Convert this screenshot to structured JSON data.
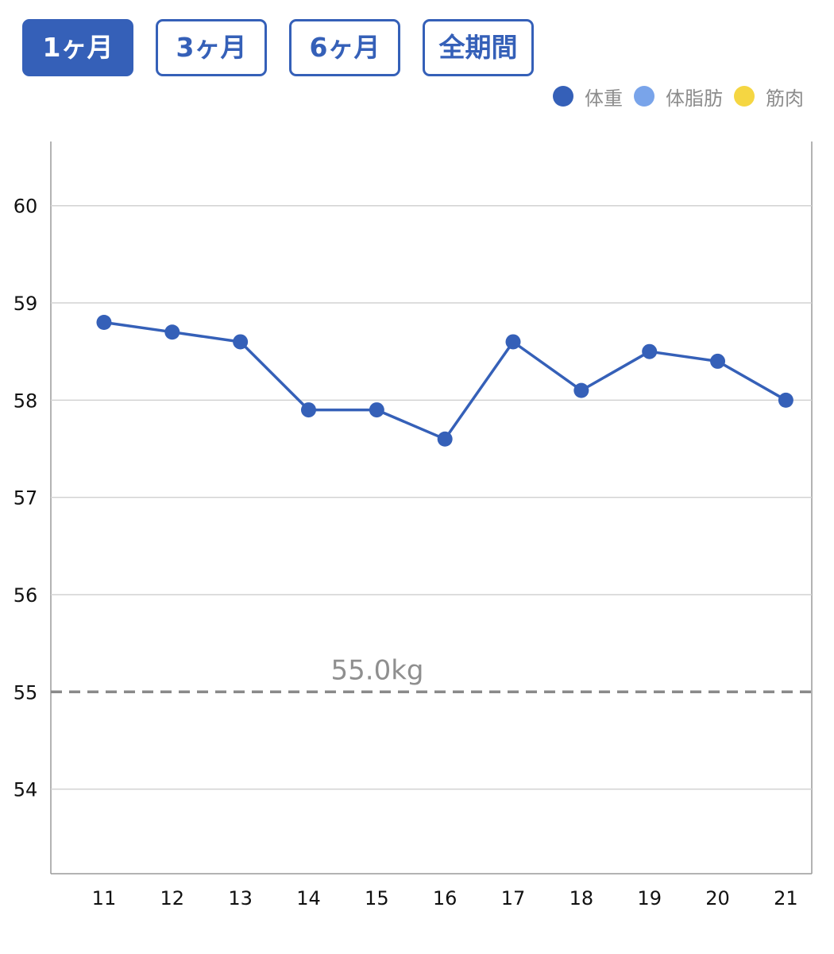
{
  "period_tabs": [
    {
      "label": "1ヶ月",
      "active": true
    },
    {
      "label": "3ヶ月",
      "active": false
    },
    {
      "label": "6ヶ月",
      "active": false
    },
    {
      "label": "全期間",
      "active": false
    }
  ],
  "legend": [
    {
      "label": "体重",
      "color": "#3560b8"
    },
    {
      "label": "体脂肪",
      "color": "#79a4ea"
    },
    {
      "label": "筋肉",
      "color": "#f5d642"
    }
  ],
  "chart_data": {
    "type": "line",
    "x": [
      11,
      12,
      13,
      14,
      15,
      16,
      17,
      18,
      19,
      20,
      21
    ],
    "series": [
      {
        "name": "体重",
        "color": "#3560b8",
        "values": [
          58.8,
          58.7,
          58.6,
          57.9,
          57.9,
          57.6,
          58.6,
          58.1,
          58.5,
          58.4,
          58.0
        ]
      }
    ],
    "y_ticks": [
      54,
      55,
      56,
      57,
      58,
      59,
      60
    ],
    "ylim": [
      53.13,
      60.66
    ],
    "xlim": [
      10.22,
      21.38
    ],
    "grid": true,
    "target_line": {
      "value": 55.0,
      "label": "55.0kg",
      "color": "#8a8a8a"
    },
    "xlabel": "",
    "ylabel": ""
  }
}
